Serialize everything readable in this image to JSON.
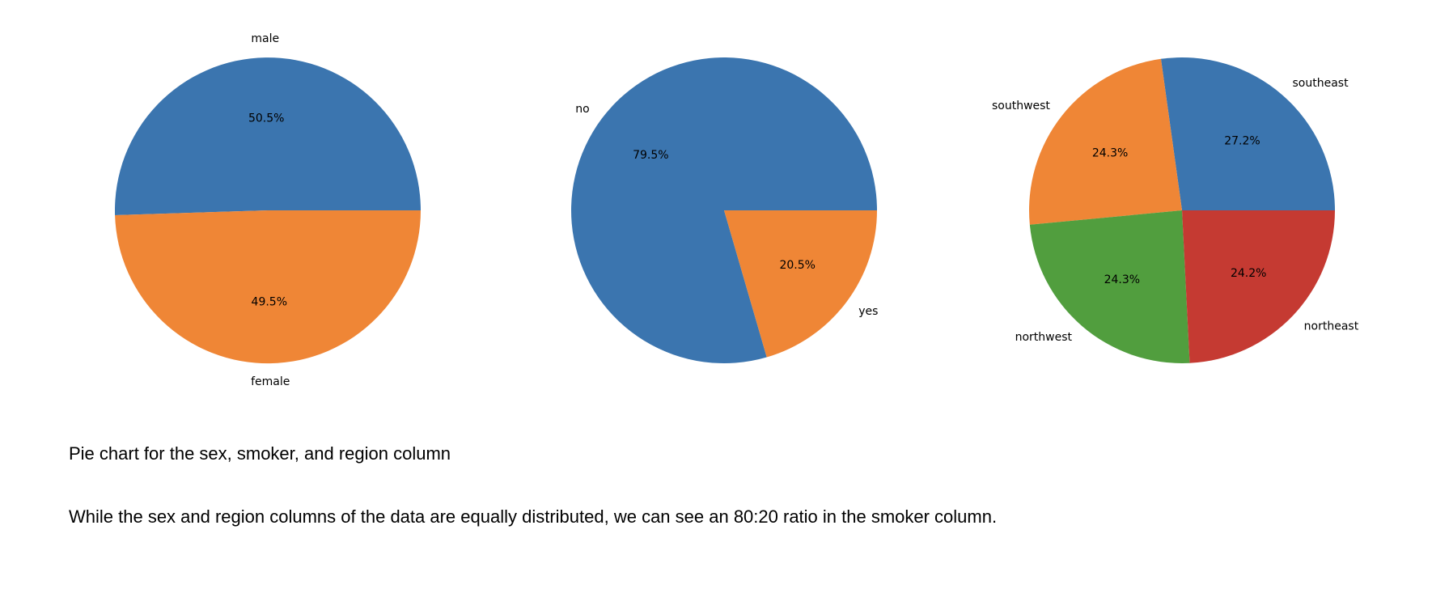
{
  "chart_data": [
    {
      "type": "pie",
      "title": "",
      "labels": [
        "male",
        "female"
      ],
      "values": [
        50.5,
        49.5
      ],
      "value_labels": [
        "50.5%",
        "49.5%"
      ],
      "colors": [
        "#3b75af",
        "#ef8636"
      ],
      "start_angle_deg": 0,
      "direction": "counterclockwise"
    },
    {
      "type": "pie",
      "title": "",
      "labels": [
        "no",
        "yes"
      ],
      "values": [
        79.5,
        20.5
      ],
      "value_labels": [
        "79.5%",
        "20.5%"
      ],
      "colors": [
        "#3b75af",
        "#ef8636"
      ],
      "start_angle_deg": 0,
      "direction": "counterclockwise"
    },
    {
      "type": "pie",
      "title": "",
      "labels": [
        "southeast",
        "southwest",
        "northwest",
        "northeast"
      ],
      "values": [
        27.2,
        24.3,
        24.3,
        24.2
      ],
      "value_labels": [
        "27.2%",
        "24.3%",
        "24.3%",
        "24.2%"
      ],
      "colors": [
        "#3b75af",
        "#ef8636",
        "#519e3e",
        "#c53a32"
      ],
      "start_angle_deg": 0,
      "direction": "counterclockwise"
    }
  ],
  "captions": {
    "title": "Pie chart for the sex, smoker, and region column",
    "body": "While the sex and region columns of the data are equally distributed, we can see an 80:20 ratio in the smoker column."
  }
}
